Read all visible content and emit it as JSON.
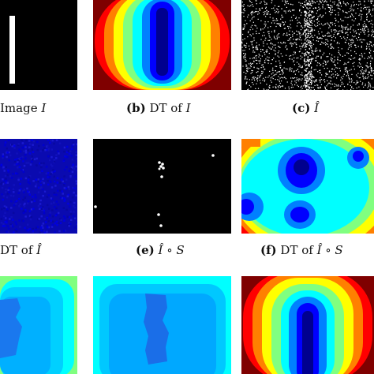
{
  "captions": {
    "a": {
      "label": "",
      "text": "Image ",
      "math": "I"
    },
    "b": {
      "label": "(b)",
      "text": " DT of ",
      "math": "I"
    },
    "c": {
      "label": "(c)",
      "text": " ",
      "math": "Î"
    },
    "d": {
      "label": "",
      "text": "DT of ",
      "math": "Î"
    },
    "e": {
      "label": "(e)",
      "text": " ",
      "math": "Î ∘ S"
    },
    "f": {
      "label": "(f)",
      "text": " DT of ",
      "math": "Î ∘ S"
    }
  },
  "colors": {
    "black": "#000000",
    "white": "#ffffff",
    "jet_dark_red": "#7f0000",
    "jet_red": "#ff0000",
    "jet_orange": "#ff8000",
    "jet_yellow": "#ffff00",
    "jet_green": "#80ff80",
    "jet_cyan": "#00ffff",
    "jet_blue": "#0080ff",
    "jet_deep_blue": "#0000ff",
    "jet_navy": "#00008f"
  }
}
